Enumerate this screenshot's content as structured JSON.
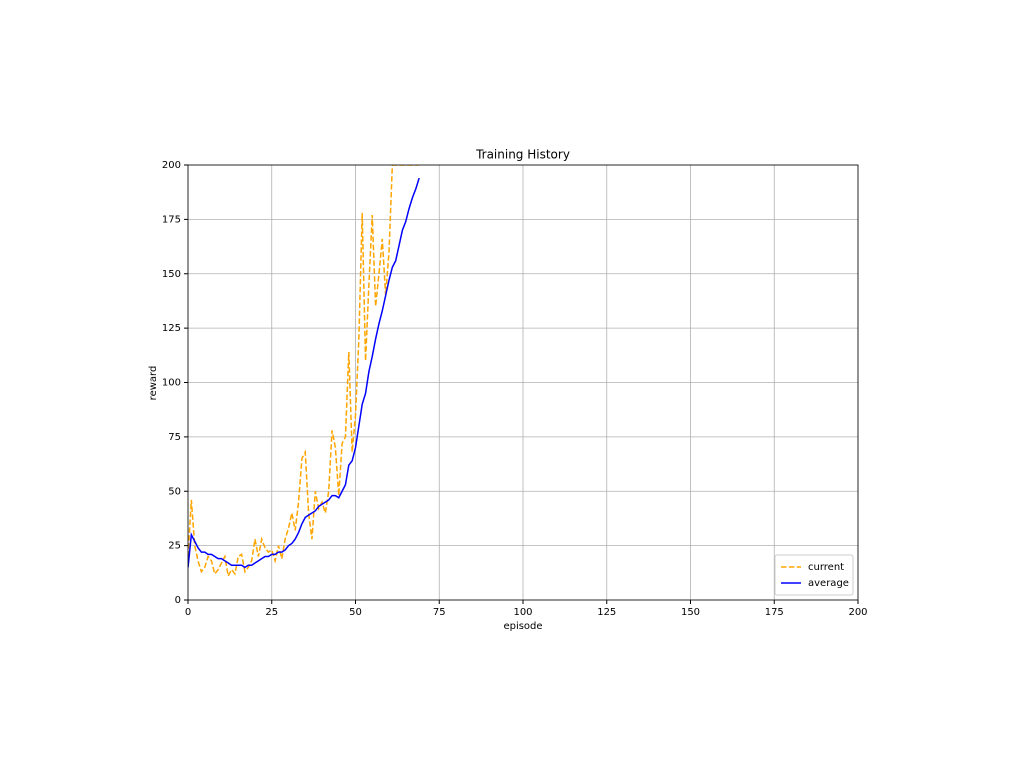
{
  "chart_data": {
    "type": "line",
    "title": "Training History",
    "x_label": "episode",
    "y_label": "reward",
    "x": [
      0,
      1,
      2,
      3,
      4,
      5,
      6,
      7,
      8,
      9,
      10,
      11,
      12,
      13,
      14,
      15,
      16,
      17,
      18,
      19,
      20,
      21,
      22,
      23,
      24,
      25,
      26,
      27,
      28,
      29,
      30,
      31,
      32,
      33,
      34,
      35,
      36,
      37,
      38,
      39,
      40,
      41,
      42,
      43,
      44,
      45,
      46,
      47,
      48,
      49,
      50,
      51,
      52,
      53,
      54,
      55,
      56,
      57,
      58,
      59,
      60,
      61,
      62,
      63,
      64,
      65,
      66,
      67,
      68,
      69
    ],
    "series": [
      {
        "name": "current",
        "color": "#ffa500",
        "linestyle": "dashed",
        "values": [
          20,
          46,
          25,
          18,
          13,
          15,
          20,
          18,
          12,
          14,
          17,
          20,
          11,
          14,
          12,
          20,
          21,
          13,
          15,
          18,
          28,
          20,
          28,
          24,
          22,
          23,
          18,
          25,
          19,
          28,
          33,
          40,
          32,
          45,
          65,
          68,
          40,
          28,
          50,
          42,
          45,
          40,
          50,
          78,
          70,
          48,
          72,
          75,
          114,
          68,
          85,
          120,
          178,
          110,
          145,
          177,
          135,
          150,
          166,
          140,
          160,
          200,
          200,
          200,
          200,
          200,
          200,
          200,
          200,
          200
        ]
      },
      {
        "name": "average",
        "color": "#0000ff",
        "linestyle": "solid",
        "values": [
          15,
          30,
          27,
          24,
          22,
          22,
          21,
          21,
          20,
          19,
          19,
          18,
          17,
          16,
          16,
          16,
          16,
          15,
          16,
          16,
          17,
          18,
          19,
          20,
          20,
          21,
          21,
          22,
          22,
          23,
          25,
          26,
          28,
          31,
          35,
          38,
          39,
          40,
          41,
          43,
          44,
          45,
          46,
          48,
          48,
          47,
          50,
          53,
          62,
          64,
          70,
          80,
          90,
          95,
          105,
          112,
          120,
          127,
          133,
          140,
          147,
          153,
          156,
          163,
          170,
          174,
          180,
          185,
          189,
          194
        ]
      }
    ],
    "xlim": [
      0,
      200
    ],
    "xticks": [
      0,
      25,
      50,
      75,
      100,
      125,
      150,
      175,
      200
    ],
    "ylim": [
      0,
      200
    ],
    "yticks": [
      0,
      25,
      50,
      75,
      100,
      125,
      150,
      175,
      200
    ],
    "grid": true,
    "legend_loc": "lower right"
  }
}
